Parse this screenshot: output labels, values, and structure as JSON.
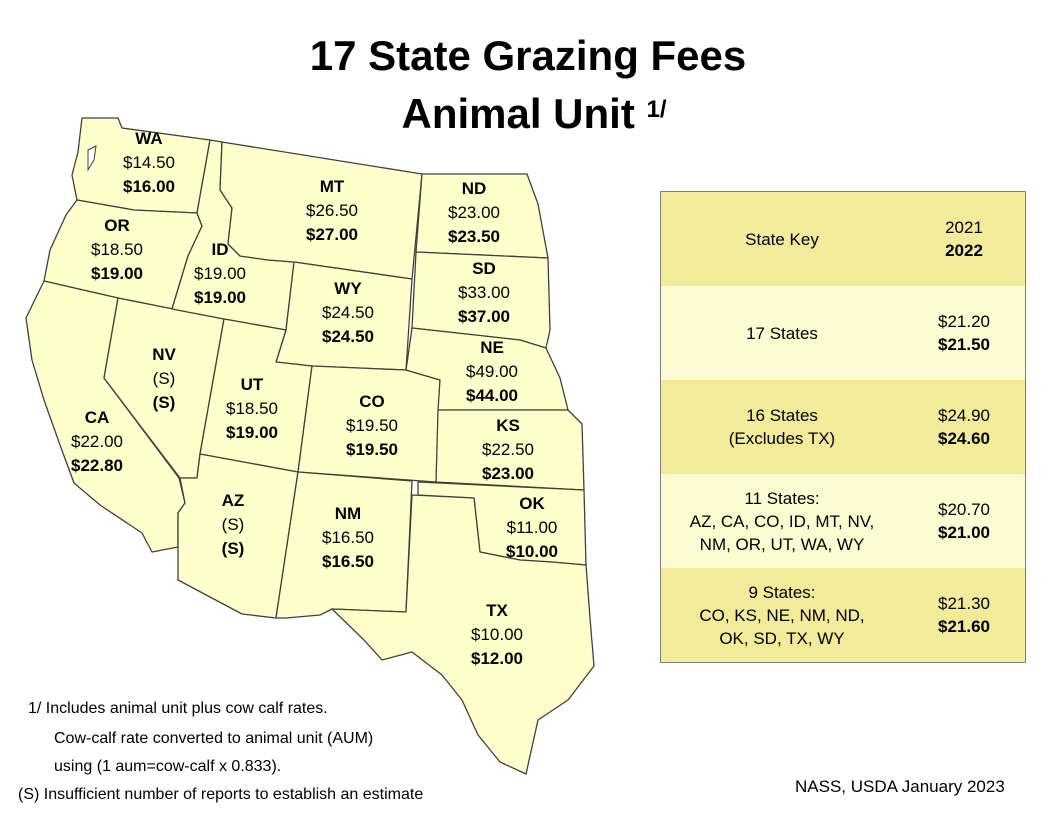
{
  "title": {
    "line1": "17 State Grazing Fees",
    "line2": "Animal Unit",
    "footnote_marker": "1/"
  },
  "colors": {
    "state_fill": "#ffffcc",
    "state_border": "#404040",
    "key_shade_dark": "#f2eb9a",
    "key_shade_light": "#fdfbd2"
  },
  "states": {
    "wa": {
      "abbr": "WA",
      "v2021": "$14.50",
      "v2022": "$16.00"
    },
    "or": {
      "abbr": "OR",
      "v2021": "$18.50",
      "v2022": "$19.00"
    },
    "ca": {
      "abbr": "CA",
      "v2021": "$22.00",
      "v2022": "$22.80"
    },
    "nv": {
      "abbr": "NV",
      "v2021": "(S)",
      "v2022": "(S)"
    },
    "id": {
      "abbr": "ID",
      "v2021": "$19.00",
      "v2022": "$19.00"
    },
    "mt": {
      "abbr": "MT",
      "v2021": "$26.50",
      "v2022": "$27.00"
    },
    "wy": {
      "abbr": "WY",
      "v2021": "$24.50",
      "v2022": "$24.50"
    },
    "ut": {
      "abbr": "UT",
      "v2021": "$18.50",
      "v2022": "$19.00"
    },
    "co": {
      "abbr": "CO",
      "v2021": "$19.50",
      "v2022": "$19.50"
    },
    "az": {
      "abbr": "AZ",
      "v2021": "(S)",
      "v2022": "(S)"
    },
    "nm": {
      "abbr": "NM",
      "v2021": "$16.50",
      "v2022": "$16.50"
    },
    "nd": {
      "abbr": "ND",
      "v2021": "$23.00",
      "v2022": "$23.50"
    },
    "sd": {
      "abbr": "SD",
      "v2021": "$33.00",
      "v2022": "$37.00"
    },
    "ne": {
      "abbr": "NE",
      "v2021": "$49.00",
      "v2022": "$44.00"
    },
    "ks": {
      "abbr": "KS",
      "v2021": "$22.50",
      "v2022": "$23.00"
    },
    "ok": {
      "abbr": "OK",
      "v2021": "$11.00",
      "v2022": "$10.00"
    },
    "tx": {
      "abbr": "TX",
      "v2021": "$10.00",
      "v2022": "$12.00"
    }
  },
  "key": {
    "header": {
      "label": "State Key",
      "y2021": "2021",
      "y2022": "2022"
    },
    "rows": [
      {
        "line1": "17 States",
        "line2": "",
        "line3": "",
        "v2021": "$21.20",
        "v2022": "$21.50"
      },
      {
        "line1": "16 States",
        "line2": "(Excludes TX)",
        "line3": "",
        "v2021": "$24.90",
        "v2022": "$24.60"
      },
      {
        "line1": "11 States:",
        "line2": "AZ, CA, CO, ID, MT, NV,",
        "line3": "NM, OR, UT, WA, WY",
        "v2021": "$20.70",
        "v2022": "$21.00"
      },
      {
        "line1": "9 States:",
        "line2": "CO, KS, NE, NM, ND,",
        "line3": "OK, SD, TX, WY",
        "v2021": "$21.30",
        "v2022": "$21.60"
      }
    ]
  },
  "footnotes": {
    "line1": "1/  Includes animal unit plus cow calf rates.",
    "line2": "Cow-calf rate converted to animal unit (AUM)",
    "line3": "using (1 aum=cow-calf x 0.833).",
    "line4": "(S)  Insufficient number of reports to establish an estimate"
  },
  "source": "NASS, USDA January 2023"
}
